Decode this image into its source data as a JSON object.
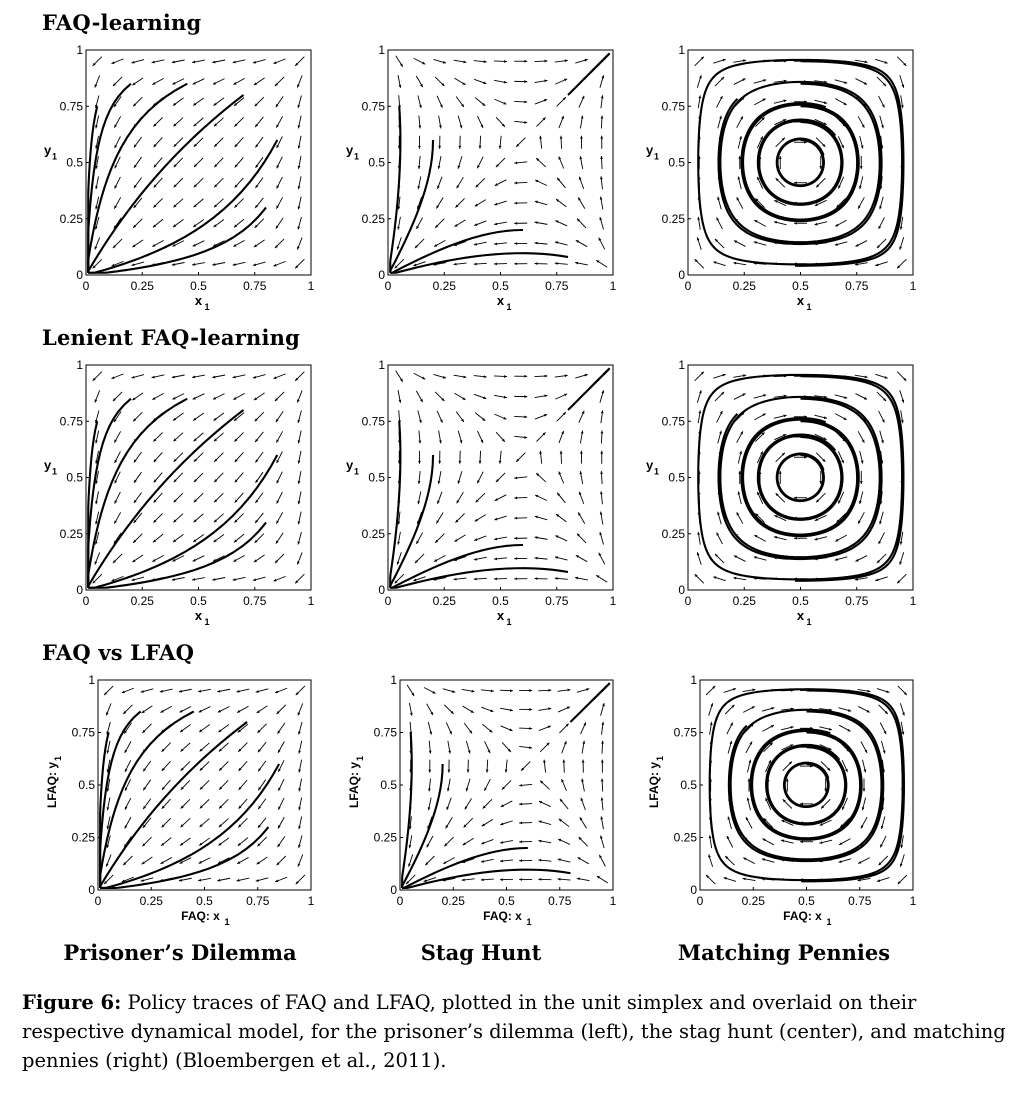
{
  "row_titles": [
    "FAQ-learning",
    "Lenient FAQ-learning",
    "FAQ vs LFAQ"
  ],
  "column_titles": [
    "Prisoner’s Dilemma",
    "Stag Hunt",
    "Matching Pennies"
  ],
  "caption": {
    "label": "Figure 6:",
    "text": "Policy traces of FAQ and LFAQ, plotted in the unit simplex and overlaid on their respective dynamical model, for the prisoner’s dilemma (left), the stag hunt (center), and matching pennies (right) (Bloembergen et al., 2011)."
  },
  "axes": {
    "ticks": [
      "0",
      "0.25",
      "0.5",
      "0.75",
      "1"
    ],
    "xlabel_rows_1_2": "x",
    "ylabel_rows_1_2": "y",
    "xlabel_row_3": "FAQ: x",
    "ylabel_row_3": "LFAQ: y",
    "subscript": "1"
  },
  "chart_data": [
    {
      "type": "vector-field",
      "game": "prisoners-dilemma",
      "learner": "FAQ-learning",
      "xlim": [
        0,
        1
      ],
      "ylim": [
        0,
        1
      ]
    },
    {
      "type": "vector-field",
      "game": "stag-hunt",
      "learner": "FAQ-learning",
      "xlim": [
        0,
        1
      ],
      "ylim": [
        0,
        1
      ]
    },
    {
      "type": "vector-field",
      "game": "matching-pennies",
      "learner": "FAQ-learning",
      "xlim": [
        0,
        1
      ],
      "ylim": [
        0,
        1
      ]
    },
    {
      "type": "vector-field",
      "game": "prisoners-dilemma",
      "learner": "Lenient FAQ-learning",
      "xlim": [
        0,
        1
      ],
      "ylim": [
        0,
        1
      ]
    },
    {
      "type": "vector-field",
      "game": "stag-hunt",
      "learner": "Lenient FAQ-learning",
      "xlim": [
        0,
        1
      ],
      "ylim": [
        0,
        1
      ]
    },
    {
      "type": "vector-field",
      "game": "matching-pennies",
      "learner": "Lenient FAQ-learning",
      "xlim": [
        0,
        1
      ],
      "ylim": [
        0,
        1
      ]
    },
    {
      "type": "vector-field",
      "game": "prisoners-dilemma",
      "learner": "FAQ vs LFAQ",
      "xlim": [
        0,
        1
      ],
      "ylim": [
        0,
        1
      ]
    },
    {
      "type": "vector-field",
      "game": "stag-hunt",
      "learner": "FAQ vs LFAQ",
      "xlim": [
        0,
        1
      ],
      "ylim": [
        0,
        1
      ]
    },
    {
      "type": "vector-field",
      "game": "matching-pennies",
      "learner": "FAQ vs LFAQ",
      "xlim": [
        0,
        1
      ],
      "ylim": [
        0,
        1
      ]
    }
  ]
}
